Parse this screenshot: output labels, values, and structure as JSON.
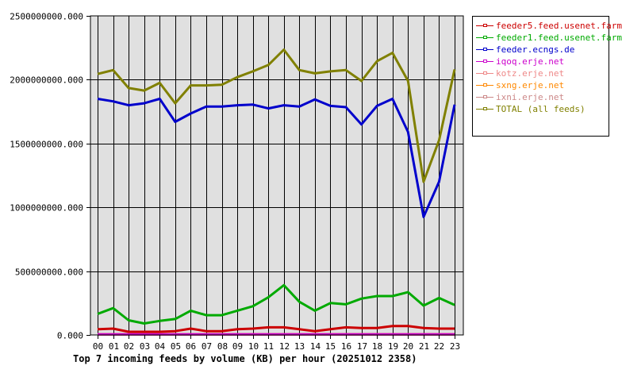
{
  "chart_data": {
    "type": "line",
    "title": "Top 7 incoming feeds by volume (KB) per hour (20251012 2358)",
    "xlabel": "",
    "ylabel": "",
    "ylim": [
      0,
      2500000000
    ],
    "yticks": [
      "0.000",
      "500000000.000",
      "1000000000.000",
      "1500000000.000",
      "2000000000.000",
      "2500000000.000"
    ],
    "grid": true,
    "legend_position": "right",
    "categories": [
      "00",
      "01",
      "02",
      "03",
      "04",
      "05",
      "06",
      "07",
      "08",
      "09",
      "10",
      "11",
      "12",
      "13",
      "14",
      "15",
      "16",
      "17",
      "18",
      "19",
      "20",
      "21",
      "22",
      "23"
    ],
    "series": [
      {
        "name": "feeder5.feed.usenet.farm",
        "color": "#cc0000",
        "values": [
          45000000,
          50000000,
          25000000,
          25000000,
          25000000,
          30000000,
          50000000,
          30000000,
          30000000,
          45000000,
          50000000,
          60000000,
          60000000,
          45000000,
          30000000,
          45000000,
          60000000,
          55000000,
          55000000,
          70000000,
          70000000,
          55000000,
          50000000,
          50000000
        ]
      },
      {
        "name": "feeder1.feed.usenet.farm",
        "color": "#00aa00",
        "values": [
          165000000,
          210000000,
          115000000,
          90000000,
          110000000,
          125000000,
          190000000,
          155000000,
          155000000,
          190000000,
          225000000,
          295000000,
          390000000,
          260000000,
          190000000,
          250000000,
          240000000,
          285000000,
          305000000,
          305000000,
          335000000,
          230000000,
          290000000,
          235000000
        ]
      },
      {
        "name": "feeder.ecngs.de",
        "color": "#0000cc",
        "values": [
          1850000000,
          1830000000,
          1800000000,
          1815000000,
          1850000000,
          1670000000,
          1735000000,
          1790000000,
          1790000000,
          1800000000,
          1805000000,
          1775000000,
          1800000000,
          1790000000,
          1845000000,
          1795000000,
          1785000000,
          1650000000,
          1795000000,
          1850000000,
          1590000000,
          925000000,
          1200000000,
          1805000000
        ]
      },
      {
        "name": "iqoq.erje.net",
        "color": "#cc00cc",
        "values": [
          5000000,
          5000000,
          5000000,
          5000000,
          5000000,
          5000000,
          5000000,
          5000000,
          5000000,
          5000000,
          5000000,
          5000000,
          5000000,
          5000000,
          5000000,
          5000000,
          5000000,
          5000000,
          5000000,
          5000000,
          5000000,
          5000000,
          5000000,
          5000000
        ]
      },
      {
        "name": "kotz.erje.net",
        "color": "#ee8888",
        "values": [
          5000000,
          5000000,
          5000000,
          5000000,
          5000000,
          5000000,
          5000000,
          5000000,
          5000000,
          5000000,
          5000000,
          5000000,
          5000000,
          5000000,
          5000000,
          5000000,
          5000000,
          5000000,
          5000000,
          5000000,
          5000000,
          5000000,
          5000000,
          5000000
        ]
      },
      {
        "name": "sxng.erje.net",
        "color": "#ff8800",
        "values": [
          5000000,
          5000000,
          5000000,
          5000000,
          5000000,
          5000000,
          5000000,
          5000000,
          5000000,
          5000000,
          5000000,
          5000000,
          5000000,
          5000000,
          5000000,
          5000000,
          5000000,
          5000000,
          5000000,
          5000000,
          5000000,
          5000000,
          5000000,
          5000000
        ]
      },
      {
        "name": "ixni.erje.net",
        "color": "#cc8888",
        "values": [
          5000000,
          5000000,
          5000000,
          5000000,
          5000000,
          5000000,
          5000000,
          5000000,
          5000000,
          5000000,
          5000000,
          5000000,
          5000000,
          5000000,
          5000000,
          5000000,
          5000000,
          5000000,
          5000000,
          5000000,
          5000000,
          5000000,
          5000000,
          5000000
        ]
      },
      {
        "name": "TOTAL (all feeds)",
        "color": "#808000",
        "values": [
          2045000000,
          2075000000,
          1935000000,
          1915000000,
          1975000000,
          1815000000,
          1955000000,
          1955000000,
          1960000000,
          2020000000,
          2065000000,
          2115000000,
          2235000000,
          2075000000,
          2050000000,
          2065000000,
          2075000000,
          1990000000,
          2145000000,
          2210000000,
          1990000000,
          1200000000,
          1525000000,
          2080000000
        ]
      }
    ]
  }
}
